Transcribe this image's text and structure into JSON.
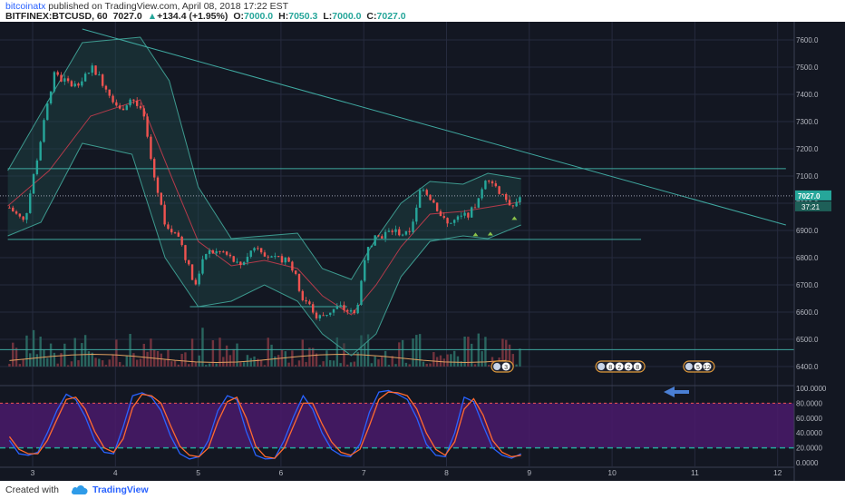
{
  "header": {
    "publisher": "bitcoinatx",
    "published_text": "published on TradingView.com, April 08, 2018 17:22 EST",
    "symbol": "BITFINEX:BTCUSD, 60",
    "last": "7027.0",
    "change": "+134.4 (+1.95%)",
    "open_label": "O:",
    "open": "7000.0",
    "high_label": "H:",
    "high": "7050.3",
    "low_label": "L:",
    "low": "7000.0",
    "close_label": "C:",
    "close": "7027.0",
    "up_arrow": "▲"
  },
  "footer": {
    "created": "Created with",
    "brand": "TradingView"
  },
  "colors": {
    "background": "#131722",
    "grid": "#262b3e",
    "up": "#26a69a",
    "down": "#ef5350",
    "bands": "#3d9a8f",
    "ma": "#b33a4a",
    "stoch_k": "#2962ff",
    "stoch_d": "#ff6a2f",
    "stoch_fill": "#4a1a6b",
    "text": "#b2b5be"
  },
  "chart_data": [
    {
      "type": "candlestick",
      "title": "",
      "x_ticks": [
        "3",
        "4",
        "5",
        "6",
        "7",
        "8",
        "9",
        "10",
        "11",
        "12"
      ],
      "y_ticks": [
        "7600.0",
        "7500.0",
        "7400.0",
        "7300.0",
        "7200.0",
        "7100.0",
        "7000.0",
        "6900.0",
        "6800.0",
        "6700.0",
        "6600.0",
        "6500.0",
        "6400.0"
      ],
      "ylim": [
        6380,
        7640
      ],
      "xlim": [
        2.7,
        12.1
      ],
      "last_price_label": "7027.0",
      "countdown_label": "37:21",
      "control_points": [
        [
          2.7,
          6990
        ],
        [
          2.9,
          6930
        ],
        [
          3.05,
          7160
        ],
        [
          3.25,
          7470
        ],
        [
          3.5,
          7430
        ],
        [
          3.72,
          7500
        ],
        [
          3.9,
          7420
        ],
        [
          4.05,
          7340
        ],
        [
          4.2,
          7390
        ],
        [
          4.35,
          7310
        ],
        [
          4.45,
          7120
        ],
        [
          4.6,
          6930
        ],
        [
          4.8,
          6850
        ],
        [
          4.95,
          6700
        ],
        [
          5.1,
          6820
        ],
        [
          5.3,
          6820
        ],
        [
          5.5,
          6770
        ],
        [
          5.7,
          6850
        ],
        [
          5.9,
          6790
        ],
        [
          6.1,
          6800
        ],
        [
          6.25,
          6660
        ],
        [
          6.45,
          6580
        ],
        [
          6.7,
          6620
        ],
        [
          6.9,
          6590
        ],
        [
          7.05,
          6850
        ],
        [
          7.2,
          6880
        ],
        [
          7.35,
          6900
        ],
        [
          7.55,
          6880
        ],
        [
          7.7,
          7070
        ],
        [
          7.85,
          7000
        ],
        [
          8.0,
          6920
        ],
        [
          8.2,
          6950
        ],
        [
          8.35,
          6980
        ],
        [
          8.5,
          7100
        ],
        [
          8.65,
          7040
        ],
        [
          8.8,
          6990
        ],
        [
          8.9,
          7027
        ]
      ],
      "bollinger_bands": {
        "upper": [
          [
            2.7,
            7120
          ],
          [
            3.1,
            7330
          ],
          [
            3.6,
            7590
          ],
          [
            4.3,
            7610
          ],
          [
            4.65,
            7450
          ],
          [
            5.0,
            7060
          ],
          [
            5.4,
            6870
          ],
          [
            5.8,
            6880
          ],
          [
            6.2,
            6890
          ],
          [
            6.5,
            6760
          ],
          [
            6.85,
            6720
          ],
          [
            7.15,
            6870
          ],
          [
            7.45,
            7000
          ],
          [
            7.8,
            7080
          ],
          [
            8.2,
            7070
          ],
          [
            8.5,
            7110
          ],
          [
            8.9,
            7090
          ]
        ],
        "lower": [
          [
            2.7,
            6880
          ],
          [
            3.1,
            6930
          ],
          [
            3.6,
            7220
          ],
          [
            4.2,
            7180
          ],
          [
            4.6,
            6800
          ],
          [
            5.0,
            6620
          ],
          [
            5.4,
            6640
          ],
          [
            5.8,
            6700
          ],
          [
            6.2,
            6640
          ],
          [
            6.5,
            6520
          ],
          [
            6.85,
            6440
          ],
          [
            7.15,
            6520
          ],
          [
            7.45,
            6730
          ],
          [
            7.8,
            6860
          ],
          [
            8.2,
            6880
          ],
          [
            8.5,
            6870
          ],
          [
            8.9,
            6920
          ]
        ],
        "middle": [
          [
            2.7,
            6990
          ],
          [
            3.2,
            7120
          ],
          [
            3.7,
            7320
          ],
          [
            4.3,
            7380
          ],
          [
            4.7,
            7080
          ],
          [
            5.0,
            6860
          ],
          [
            5.4,
            6770
          ],
          [
            5.8,
            6790
          ],
          [
            6.2,
            6760
          ],
          [
            6.5,
            6660
          ],
          [
            6.85,
            6590
          ],
          [
            7.15,
            6700
          ],
          [
            7.45,
            6840
          ],
          [
            7.8,
            6960
          ],
          [
            8.2,
            6970
          ],
          [
            8.6,
            6990
          ],
          [
            8.9,
            7005
          ]
        ]
      },
      "trendline": {
        "x1": 3.6,
        "y1": 7640,
        "x2": 12.1,
        "y2": 6920
      },
      "horizontal_lines": [
        {
          "y": 7127,
          "x_from": 2.7,
          "x_to": 12.1
        },
        {
          "y": 6867,
          "x_from": 2.7,
          "x_to": 10.35
        },
        {
          "y": 6620,
          "x_from": 4.9,
          "x_to": 6.8
        }
      ],
      "volume_ceiling_line": 6462,
      "event_markers": [
        {
          "x": 8.62,
          "labels": [
            "3"
          ]
        },
        {
          "x": 9.88,
          "labels": [
            "8",
            "2",
            "2",
            "8"
          ]
        },
        {
          "x": 10.94,
          "labels": [
            "5",
            "12"
          ]
        }
      ],
      "volume": {
        "axis_base": 6400,
        "axis_top": 6560
      }
    },
    {
      "type": "line",
      "title": "",
      "y_ticks": [
        "100.0000",
        "80.0000",
        "60.0000",
        "40.0000",
        "20.0000",
        "0.0000"
      ],
      "ylim": [
        -5,
        105
      ],
      "levels": [
        20,
        80
      ],
      "series": [
        {
          "values": [
            30,
            12,
            10,
            14,
            40,
            70,
            92,
            85,
            62,
            30,
            14,
            12,
            48,
            90,
            94,
            88,
            70,
            36,
            12,
            5,
            8,
            30,
            70,
            90,
            85,
            42,
            10,
            5,
            6,
            30,
            62,
            90,
            72,
            40,
            18,
            10,
            8,
            25,
            68,
            95,
            97,
            92,
            85,
            60,
            25,
            10,
            8,
            40,
            88,
            82,
            50,
            20,
            10,
            6,
            12
          ]
        },
        {
          "values": [
            35,
            18,
            12,
            12,
            30,
            58,
            85,
            88,
            72,
            42,
            20,
            14,
            32,
            74,
            92,
            90,
            80,
            50,
            22,
            10,
            8,
            20,
            55,
            82,
            88,
            60,
            22,
            8,
            6,
            20,
            50,
            80,
            80,
            52,
            28,
            14,
            10,
            18,
            50,
            85,
            95,
            94,
            90,
            72,
            40,
            18,
            10,
            28,
            72,
            86,
            64,
            30,
            14,
            8,
            10
          ]
        }
      ]
    }
  ]
}
